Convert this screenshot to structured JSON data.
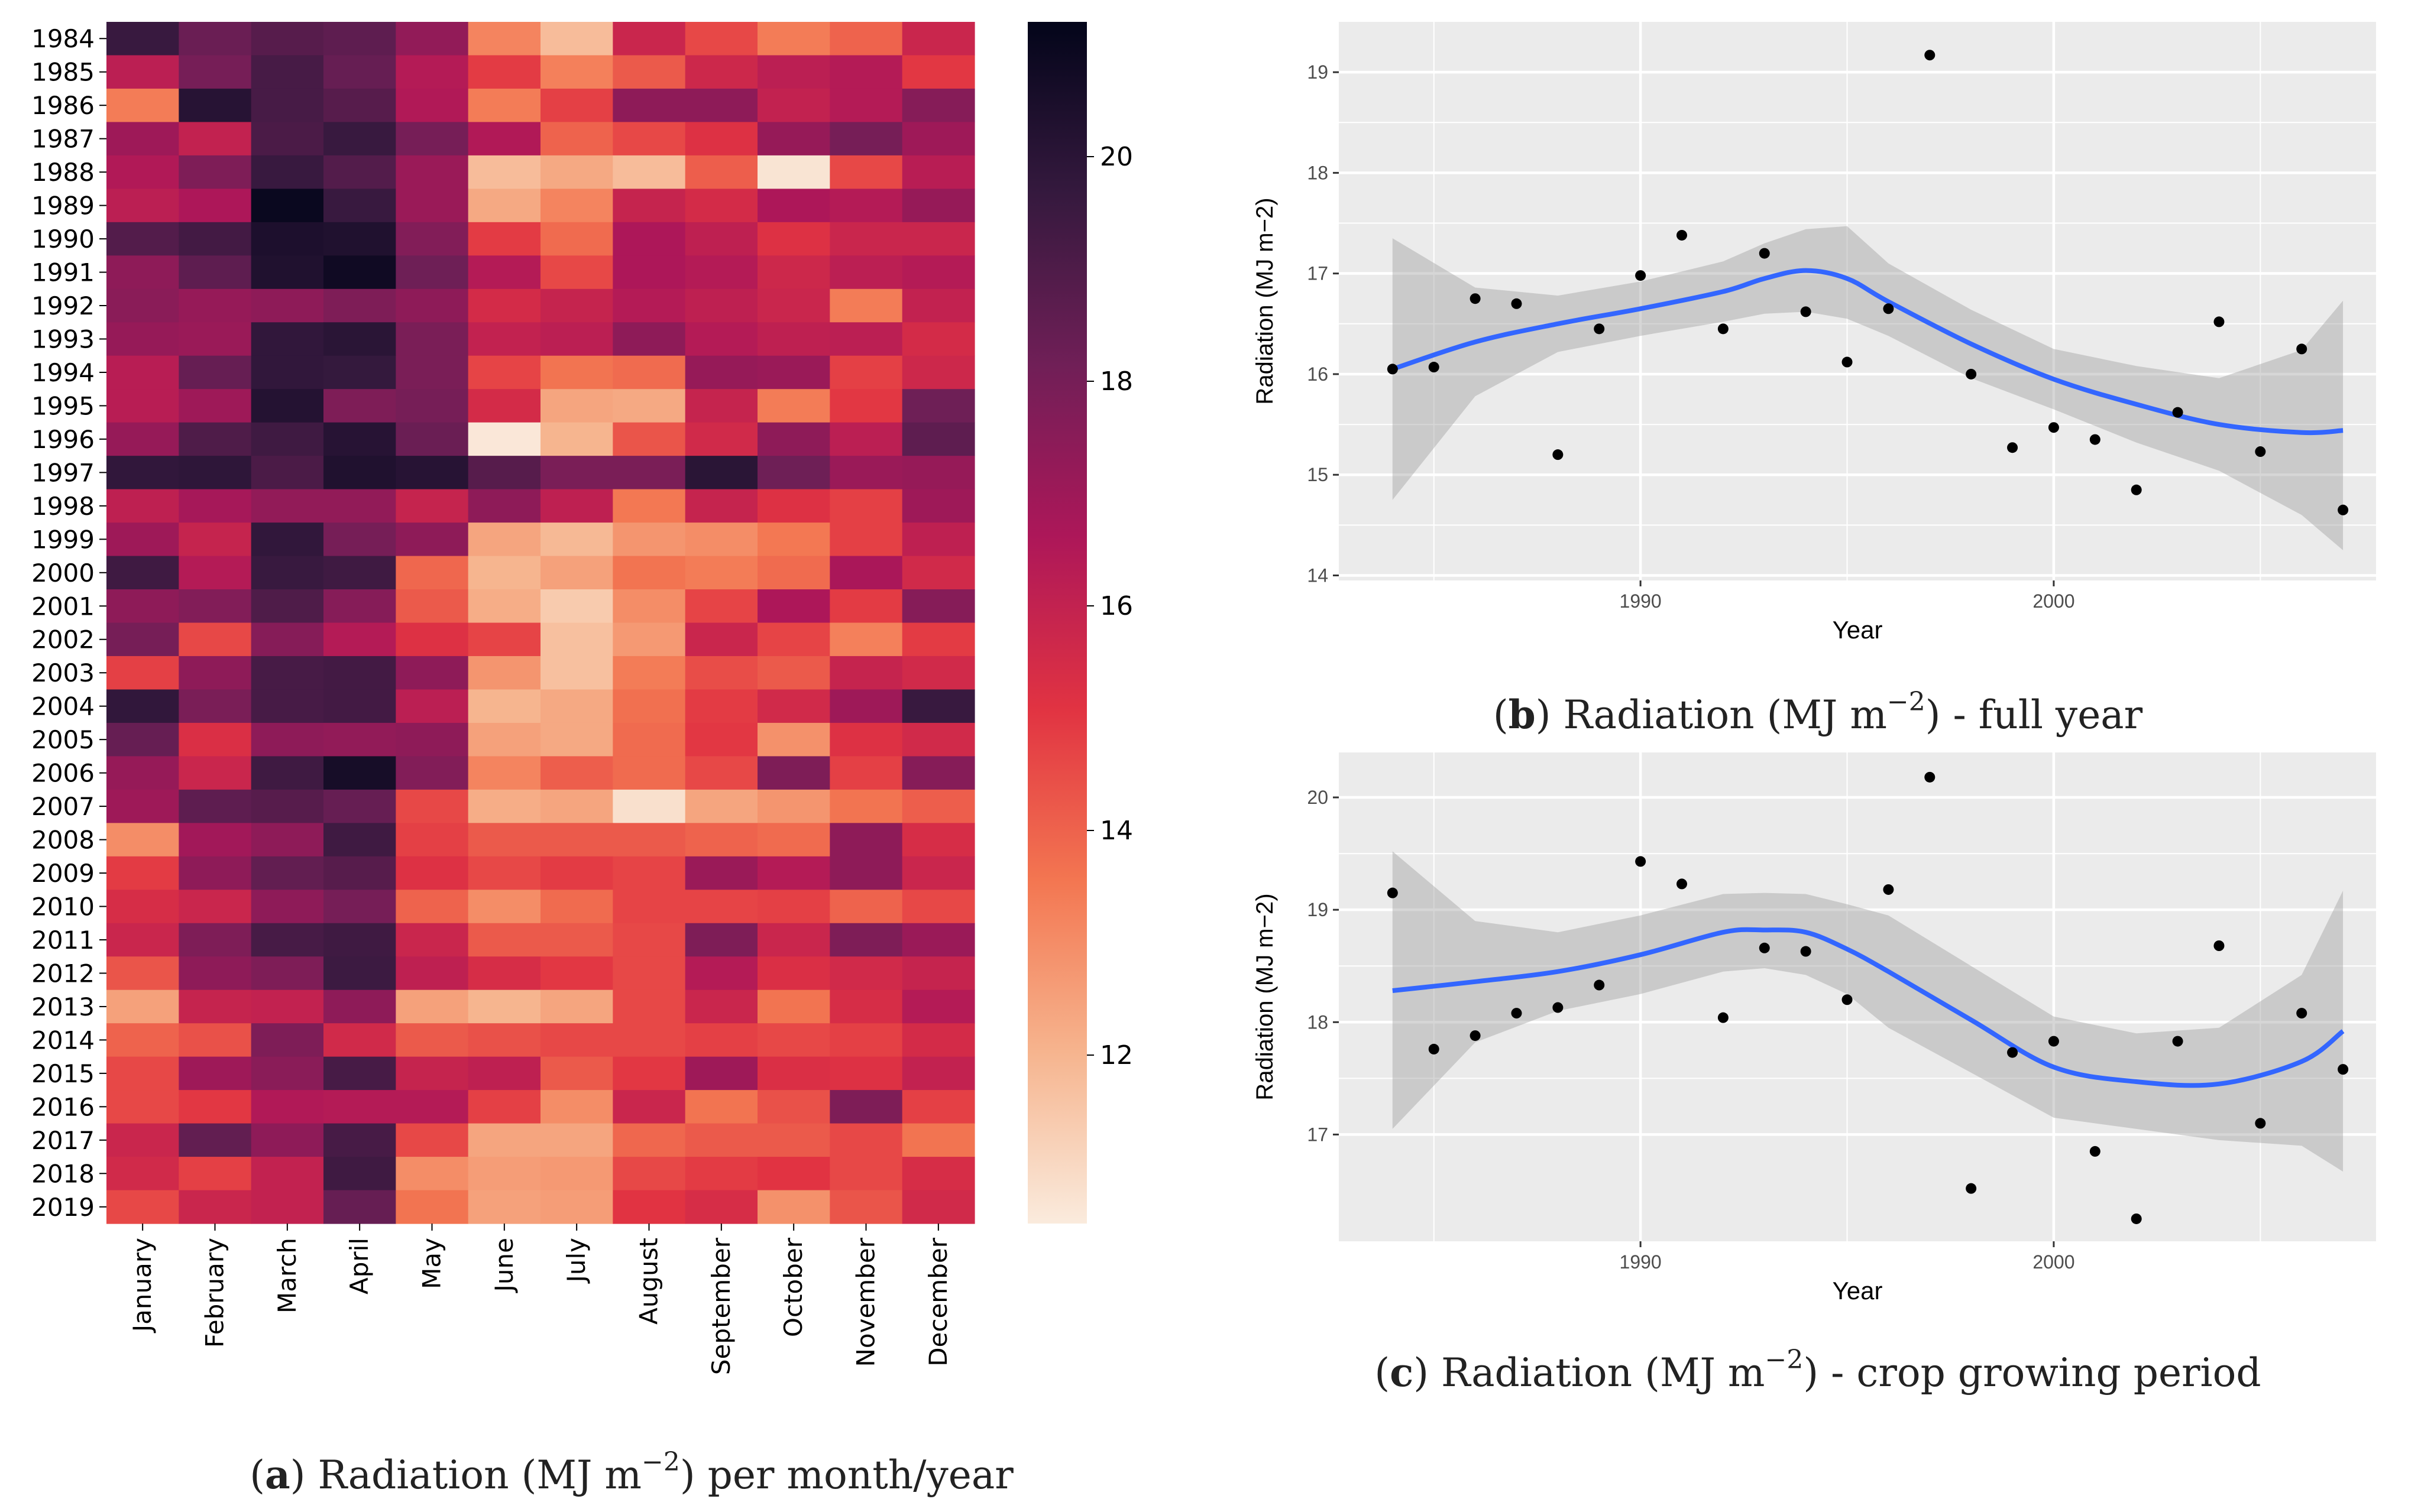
{
  "heatmap": {
    "chart_data": {
      "type": "heatmap",
      "years": [
        "1984",
        "1985",
        "1986",
        "1987",
        "1988",
        "1989",
        "1990",
        "1991",
        "1992",
        "1993",
        "1994",
        "1995",
        "1996",
        "1997",
        "1998",
        "1999",
        "2000",
        "2001",
        "2002",
        "2003",
        "2004",
        "2005",
        "2006",
        "2007",
        "2008",
        "2009",
        "2010",
        "2011",
        "2012",
        "2013",
        "2014",
        "2015",
        "2016",
        "2017",
        "2018",
        "2019"
      ],
      "months": [
        "January",
        "February",
        "March",
        "April",
        "May",
        "June",
        "July",
        "August",
        "September",
        "October",
        "November",
        "December"
      ],
      "values": [
        [
          19.6,
          18.3,
          18.8,
          18.6,
          17.3,
          13.2,
          11.8,
          15.8,
          14.6,
          13.4,
          14.0,
          15.8
        ],
        [
          16.2,
          18.0,
          19.2,
          18.4,
          16.4,
          14.9,
          13.3,
          14.2,
          15.7,
          16.2,
          16.4,
          15.0
        ],
        [
          13.4,
          20.1,
          19.2,
          18.8,
          16.5,
          13.4,
          14.8,
          17.4,
          17.4,
          16.0,
          16.4,
          17.6
        ],
        [
          17.0,
          16.0,
          19.1,
          19.6,
          18.0,
          16.5,
          14.0,
          14.6,
          15.2,
          17.2,
          18.0,
          17.0
        ],
        [
          16.5,
          17.8,
          19.6,
          18.9,
          17.1,
          11.8,
          12.3,
          11.8,
          14.1,
          10.7,
          14.6,
          16.3
        ],
        [
          16.2,
          16.6,
          21.0,
          19.6,
          17.1,
          12.3,
          13.2,
          15.9,
          15.5,
          16.6,
          16.4,
          17.2
        ],
        [
          18.9,
          19.3,
          20.4,
          20.3,
          17.7,
          14.9,
          13.8,
          16.6,
          16.1,
          15.2,
          15.8,
          15.8
        ],
        [
          17.4,
          18.6,
          20.3,
          20.8,
          18.2,
          16.4,
          14.6,
          16.6,
          16.4,
          15.7,
          16.2,
          16.4
        ],
        [
          17.5,
          17.2,
          17.4,
          17.8,
          17.4,
          15.5,
          15.9,
          16.4,
          16.1,
          15.8,
          13.4,
          16.0
        ],
        [
          17.2,
          17.1,
          19.8,
          20.0,
          17.9,
          16.0,
          16.2,
          17.4,
          16.4,
          16.1,
          16.2,
          15.5
        ],
        [
          16.3,
          18.4,
          19.8,
          19.7,
          17.9,
          14.7,
          13.6,
          13.8,
          17.2,
          17.1,
          14.8,
          15.7
        ],
        [
          16.3,
          17.0,
          20.2,
          17.8,
          18.0,
          15.5,
          12.4,
          12.3,
          15.9,
          13.4,
          15.0,
          18.2
        ],
        [
          17.2,
          19.0,
          19.4,
          20.1,
          18.3,
          10.6,
          12.0,
          14.3,
          15.6,
          17.4,
          16.2,
          18.6
        ],
        [
          19.8,
          19.9,
          19.1,
          20.3,
          20.1,
          18.8,
          17.9,
          17.9,
          20.0,
          18.2,
          17.1,
          17.2
        ],
        [
          16.1,
          16.8,
          17.3,
          17.3,
          15.9,
          17.4,
          16.1,
          13.5,
          15.9,
          15.2,
          14.8,
          17.0
        ],
        [
          17.0,
          15.9,
          19.8,
          18.0,
          17.4,
          12.4,
          11.9,
          12.8,
          13.0,
          13.5,
          14.8,
          16.1
        ],
        [
          19.4,
          16.4,
          19.6,
          19.4,
          13.9,
          12.0,
          12.5,
          13.6,
          13.4,
          13.8,
          16.7,
          15.6
        ],
        [
          17.4,
          17.7,
          19.0,
          17.6,
          14.2,
          12.2,
          11.4,
          13.0,
          14.7,
          16.6,
          14.9,
          17.6
        ],
        [
          18.0,
          14.6,
          17.6,
          16.4,
          15.2,
          14.7,
          11.7,
          12.7,
          15.8,
          14.7,
          13.3,
          14.9
        ],
        [
          14.8,
          17.4,
          19.2,
          19.3,
          17.4,
          12.8,
          11.7,
          13.4,
          14.5,
          14.2,
          15.9,
          15.6
        ],
        [
          19.8,
          17.9,
          19.2,
          19.3,
          16.2,
          12.0,
          12.3,
          13.7,
          14.9,
          15.6,
          17.0,
          19.6
        ],
        [
          18.4,
          15.3,
          17.4,
          17.3,
          17.4,
          12.5,
          12.3,
          13.8,
          15.0,
          12.9,
          15.2,
          15.6
        ],
        [
          17.2,
          15.8,
          19.4,
          20.6,
          17.7,
          13.2,
          14.1,
          13.8,
          14.6,
          17.8,
          14.8,
          17.6
        ],
        [
          17.0,
          18.6,
          18.8,
          18.4,
          14.6,
          12.2,
          12.4,
          10.8,
          12.4,
          12.8,
          13.6,
          14.1
        ],
        [
          13.0,
          16.9,
          17.4,
          19.4,
          14.8,
          14.2,
          14.2,
          14.2,
          14.0,
          13.8,
          17.4,
          15.4
        ],
        [
          14.9,
          17.4,
          18.5,
          18.8,
          15.2,
          14.6,
          14.9,
          14.7,
          17.1,
          16.4,
          17.4,
          15.8
        ],
        [
          15.4,
          15.8,
          17.4,
          18.0,
          14.0,
          13.0,
          13.8,
          14.7,
          14.7,
          14.8,
          14.0,
          14.6
        ],
        [
          15.8,
          17.8,
          19.2,
          19.4,
          15.8,
          14.2,
          14.2,
          14.6,
          17.8,
          15.8,
          17.8,
          17.1
        ],
        [
          14.3,
          17.4,
          17.8,
          19.5,
          16.1,
          15.4,
          15.0,
          14.6,
          16.4,
          15.3,
          15.6,
          15.9
        ],
        [
          12.5,
          15.9,
          16.0,
          17.4,
          12.5,
          12.0,
          12.4,
          14.6,
          15.8,
          13.6,
          15.4,
          16.4
        ],
        [
          14.0,
          14.4,
          17.8,
          15.6,
          14.2,
          14.4,
          14.6,
          14.6,
          14.8,
          14.6,
          14.8,
          15.5
        ],
        [
          14.6,
          17.0,
          17.5,
          19.2,
          15.9,
          16.1,
          14.2,
          15.0,
          17.0,
          15.3,
          15.2,
          16.0
        ],
        [
          14.6,
          15.0,
          16.5,
          16.4,
          16.4,
          14.8,
          13.0,
          15.8,
          13.6,
          14.4,
          17.8,
          14.8
        ],
        [
          15.8,
          18.5,
          17.4,
          19.2,
          14.6,
          12.4,
          12.4,
          13.9,
          14.2,
          14.2,
          14.6,
          13.6
        ],
        [
          15.6,
          14.8,
          16.0,
          19.4,
          13.0,
          12.6,
          12.7,
          14.6,
          14.9,
          15.1,
          14.6,
          15.4
        ],
        [
          14.6,
          15.8,
          16.0,
          18.4,
          13.6,
          12.5,
          12.6,
          15.1,
          15.4,
          12.9,
          14.3,
          15.6
        ]
      ],
      "colorbar": {
        "min": 10.5,
        "max": 21.2,
        "ticks": [
          12,
          14,
          16,
          18,
          20
        ]
      },
      "colormap": [
        "#faebdd",
        "#f6b48e",
        "#f37651",
        "#e13342",
        "#ad1759",
        "#701f57",
        "#35193e",
        "#03051a"
      ]
    },
    "caption": {
      "label": "a",
      "open": "(",
      "close": ")",
      "text_pre": " Radiation (MJ m",
      "sup": "−2",
      "text_post": ") per month/year"
    }
  },
  "panel_b": {
    "chart_data": {
      "type": "scatter",
      "xlabel": "Year",
      "ylabel": "Radiation (MJ m−2)",
      "xlim": [
        1982.7,
        2007.8
      ],
      "ylim": [
        13.95,
        19.5
      ],
      "xticks": [
        1990,
        2000
      ],
      "yticks": [
        14,
        15,
        16,
        17,
        18,
        19
      ],
      "points": {
        "x": [
          1984,
          1985,
          1986,
          1987,
          1988,
          1989,
          1990,
          1991,
          1992,
          1993,
          1994,
          1995,
          1996,
          1997,
          1998,
          1999,
          2000,
          2001,
          2002,
          2003,
          2004,
          2005,
          2006,
          2007
        ],
        "y": [
          16.05,
          16.07,
          16.75,
          16.7,
          15.2,
          16.45,
          16.98,
          17.38,
          16.45,
          17.2,
          16.62,
          16.12,
          16.65,
          19.17,
          16.0,
          15.27,
          15.47,
          15.35,
          14.85,
          15.62,
          16.52,
          15.23,
          16.25,
          14.65
        ]
      },
      "smooth": {
        "x": [
          1984,
          1986,
          1988,
          1990,
          1992,
          1993,
          1994,
          1995,
          1996,
          1998,
          2000,
          2002,
          2004,
          2006,
          2007
        ],
        "y": [
          16.05,
          16.32,
          16.5,
          16.65,
          16.82,
          16.95,
          17.03,
          16.95,
          16.72,
          16.3,
          15.95,
          15.7,
          15.5,
          15.42,
          15.44
        ],
        "lower": [
          14.75,
          15.78,
          16.22,
          16.38,
          16.52,
          16.6,
          16.62,
          16.55,
          16.38,
          15.96,
          15.65,
          15.32,
          15.04,
          14.6,
          14.25
        ],
        "upper": [
          17.35,
          16.86,
          16.78,
          16.92,
          17.12,
          17.3,
          17.44,
          17.47,
          17.1,
          16.64,
          16.25,
          16.08,
          15.96,
          16.24,
          16.73
        ]
      }
    },
    "caption": {
      "label": "b",
      "open": "(",
      "close": ")",
      "text_pre": " Radiation (MJ m",
      "sup": "−2",
      "text_post": ") - full year"
    }
  },
  "panel_c": {
    "chart_data": {
      "type": "scatter",
      "xlabel": "Year",
      "ylabel": "Radiation (MJ m−2)",
      "xlim": [
        1982.7,
        2007.8
      ],
      "ylim": [
        16.05,
        20.4
      ],
      "xticks": [
        1990,
        2000
      ],
      "yticks": [
        17,
        18,
        19,
        20
      ],
      "points": {
        "x": [
          1984,
          1985,
          1986,
          1987,
          1988,
          1989,
          1990,
          1991,
          1992,
          1993,
          1994,
          1995,
          1996,
          1997,
          1998,
          1999,
          2000,
          2001,
          2002,
          2003,
          2004,
          2005,
          2006,
          2007
        ],
        "y": [
          19.15,
          17.76,
          17.88,
          18.08,
          18.13,
          18.33,
          19.43,
          19.23,
          18.04,
          18.66,
          18.63,
          18.2,
          19.18,
          20.18,
          16.52,
          17.73,
          17.83,
          16.85,
          16.25,
          17.83,
          18.68,
          17.1,
          18.08,
          17.58
        ]
      },
      "smooth": {
        "x": [
          1984,
          1986,
          1988,
          1990,
          1992,
          1993,
          1994,
          1995,
          1996,
          1998,
          2000,
          2002,
          2004,
          2006,
          2007
        ],
        "y": [
          18.28,
          18.36,
          18.45,
          18.6,
          18.8,
          18.82,
          18.8,
          18.65,
          18.45,
          18.02,
          17.6,
          17.47,
          17.45,
          17.65,
          17.92
        ],
        "lower": [
          17.05,
          17.82,
          18.1,
          18.25,
          18.45,
          18.48,
          18.42,
          18.25,
          17.95,
          17.55,
          17.15,
          17.05,
          16.95,
          16.9,
          16.67
        ],
        "upper": [
          19.52,
          18.9,
          18.8,
          18.95,
          19.14,
          19.15,
          19.14,
          19.05,
          18.95,
          18.5,
          18.05,
          17.9,
          17.95,
          18.42,
          19.17
        ]
      }
    },
    "caption": {
      "label": "c",
      "open": "(",
      "close": ")",
      "text_pre": " Radiation (MJ m",
      "sup": "−2",
      "text_post": ") - crop growing period"
    }
  }
}
